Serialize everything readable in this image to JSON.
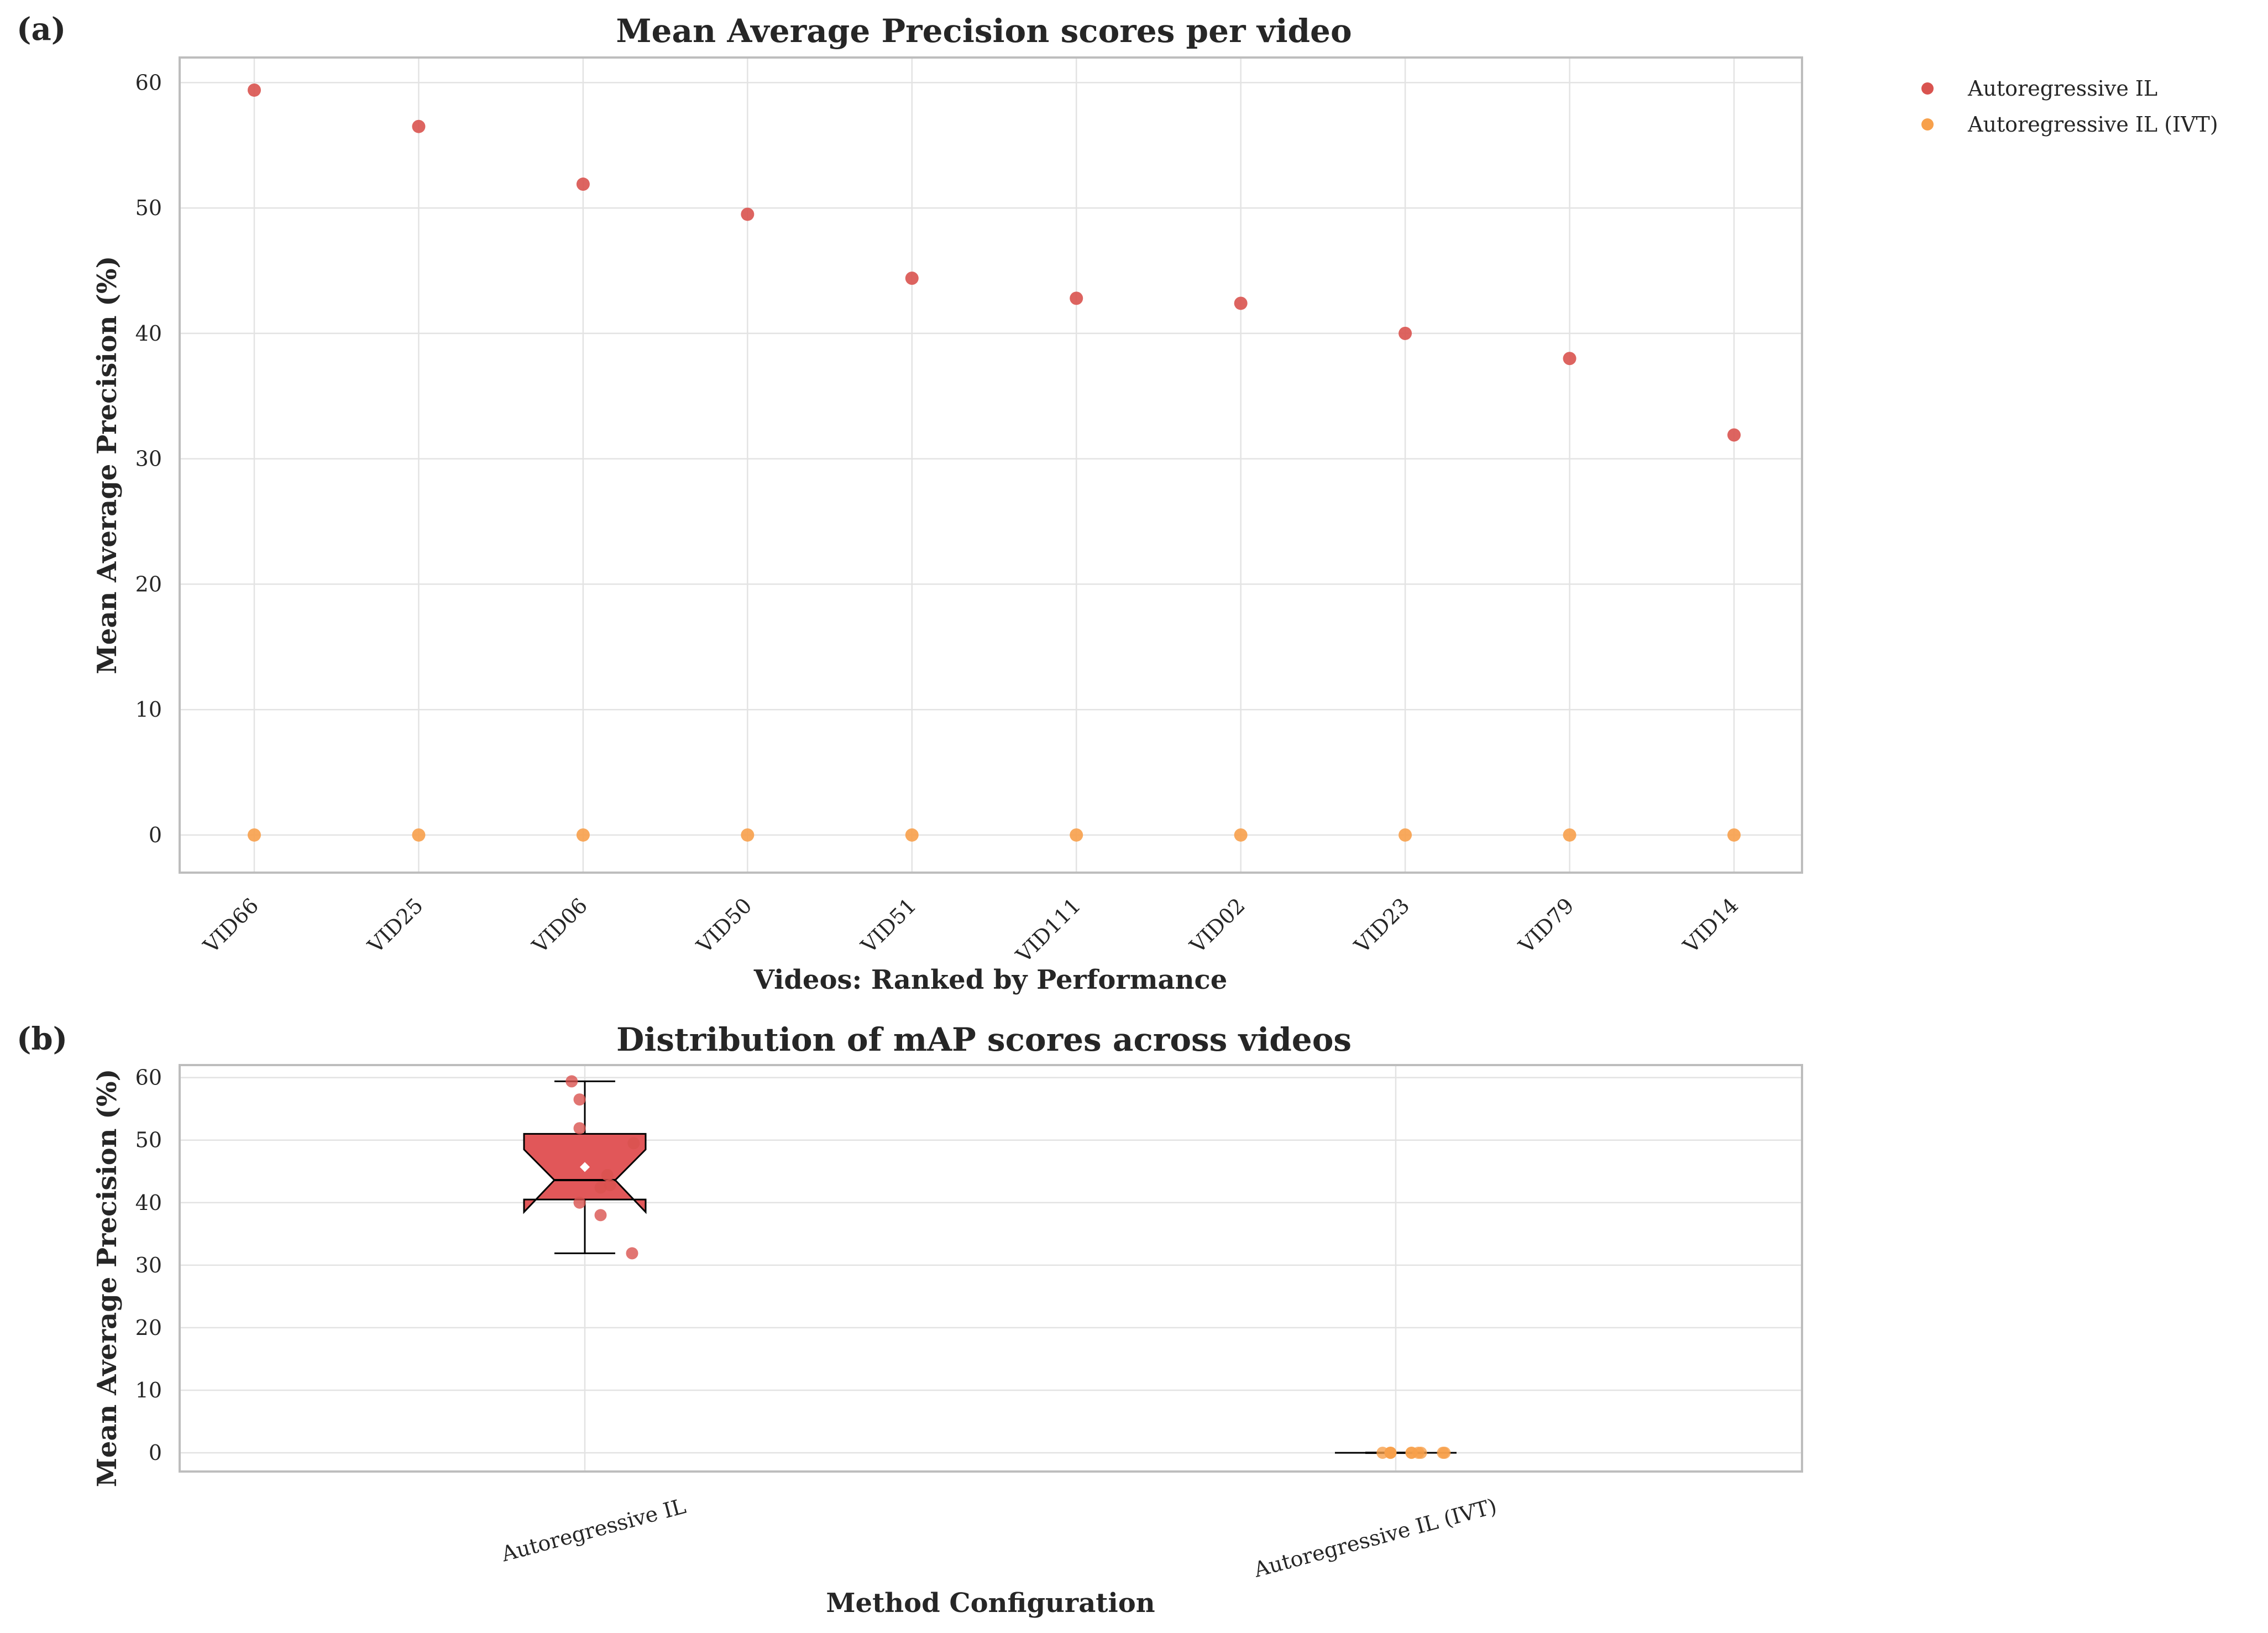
{
  "panels": {
    "a": {
      "label": "(a)"
    },
    "b": {
      "label": "(b)"
    }
  },
  "colors": {
    "series1": "#d9534f",
    "series2": "#f7a04b",
    "box_fill": "#e15759",
    "grid": "#e3e3e3",
    "frame": "#bdbdbd"
  },
  "chart_data": [
    {
      "type": "scatter",
      "title": "Mean Average Precision scores per video",
      "xlabel": "Videos: Ranked by Performance",
      "ylabel": "Mean Average Precision (%)",
      "categories": [
        "VID66",
        "VID25",
        "VID06",
        "VID50",
        "VID51",
        "VID111",
        "VID02",
        "VID23",
        "VID79",
        "VID14"
      ],
      "ylim": [
        -3,
        62
      ],
      "yticks": [
        0,
        10,
        20,
        30,
        40,
        50,
        60
      ],
      "grid": true,
      "legend_position": "outside top-right",
      "series": [
        {
          "name": "Autoregressive IL",
          "values": [
            59.4,
            56.5,
            51.9,
            49.5,
            44.4,
            42.8,
            42.4,
            40.0,
            38.0,
            31.9
          ]
        },
        {
          "name": "Autoregressive IL (IVT)",
          "values": [
            0,
            0,
            0,
            0,
            0,
            0,
            0,
            0,
            0,
            0
          ]
        }
      ]
    },
    {
      "type": "box",
      "title": "Distribution of mAP scores across videos",
      "xlabel": "Method Configuration",
      "ylabel": "Mean Average Precision (%)",
      "categories": [
        "Autoregressive IL",
        "Autoregressive IL (IVT)"
      ],
      "ylim": [
        -3,
        62
      ],
      "yticks": [
        0,
        10,
        20,
        30,
        40,
        50,
        60
      ],
      "grid": true,
      "boxes": [
        {
          "name": "Autoregressive IL",
          "min": 31.9,
          "q1": 40.5,
          "median": 43.6,
          "q3": 51.0,
          "max": 59.4,
          "mean": 45.7,
          "notch_low": 38.5,
          "notch_high": 48.5,
          "points": [
            59.4,
            56.5,
            51.9,
            49.5,
            44.4,
            42.8,
            42.4,
            40.0,
            38.0,
            31.9
          ]
        },
        {
          "name": "Autoregressive IL (IVT)",
          "min": 0,
          "q1": 0,
          "median": 0,
          "q3": 0,
          "max": 0,
          "mean": 0,
          "notch_low": 0,
          "notch_high": 0,
          "points": [
            0,
            0,
            0,
            0,
            0,
            0,
            0,
            0,
            0,
            0
          ]
        }
      ]
    }
  ]
}
